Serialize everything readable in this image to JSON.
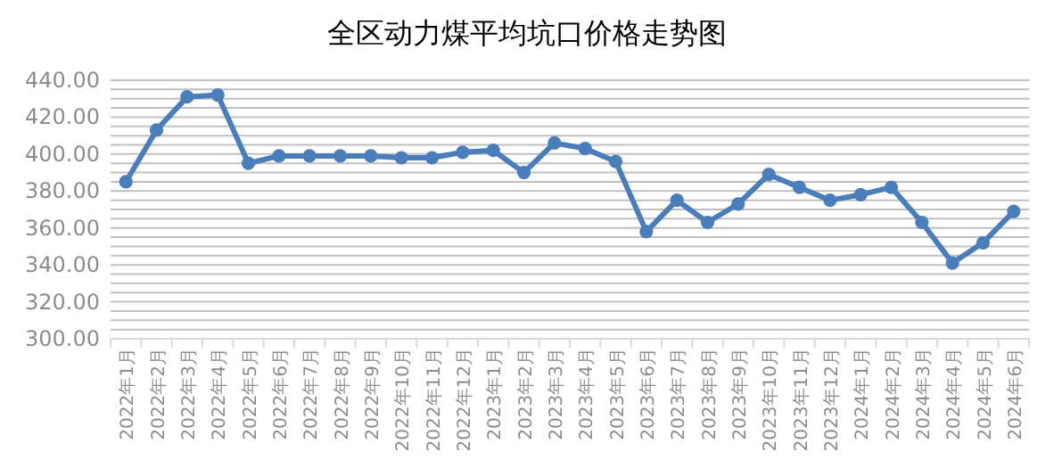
{
  "chart_data": {
    "type": "line",
    "title": "全区动力煤平均坑口价格走势图",
    "categories": [
      "2022年1月",
      "2022年2月",
      "2022年3月",
      "2022年4月",
      "2022年5月",
      "2022年6月",
      "2022年7月",
      "2022年8月",
      "2022年9月",
      "2022年10月",
      "2022年11月",
      "2022年12月",
      "2023年1月",
      "2023年2月",
      "2023年3月",
      "2023年4月",
      "2023年5月",
      "2023年6月",
      "2023年7月",
      "2023年8月",
      "2023年9月",
      "2023年10月",
      "2023年11月",
      "2023年12月",
      "2024年1月",
      "2024年2月",
      "2024年3月",
      "2024年4月",
      "2024年5月",
      "2024年6月"
    ],
    "series": [
      {
        "color": "#4a7ebb",
        "values": [
          385,
          413,
          431,
          432,
          395,
          399,
          399,
          399,
          399,
          398,
          398,
          401,
          402,
          390,
          406,
          403,
          396,
          358,
          375,
          363,
          373,
          389,
          382,
          375,
          378,
          382,
          363,
          341,
          352,
          369
        ]
      }
    ],
    "ylim": [
      300,
      440
    ],
    "yticks": [
      {
        "value": 300,
        "label": "300.00"
      },
      {
        "value": 305,
        "label": null
      },
      {
        "value": 310,
        "label": null
      },
      {
        "value": 315,
        "label": null
      },
      {
        "value": 320,
        "label": "320.00"
      },
      {
        "value": 325,
        "label": null
      },
      {
        "value": 330,
        "label": null
      },
      {
        "value": 335,
        "label": null
      },
      {
        "value": 340,
        "label": "340.00"
      },
      {
        "value": 345,
        "label": null
      },
      {
        "value": 350,
        "label": null
      },
      {
        "value": 355,
        "label": null
      },
      {
        "value": 360,
        "label": "360.00"
      },
      {
        "value": 365,
        "label": null
      },
      {
        "value": 370,
        "label": null
      },
      {
        "value": 375,
        "label": null
      },
      {
        "value": 380,
        "label": "380.00"
      },
      {
        "value": 385,
        "label": null
      },
      {
        "value": 390,
        "label": null
      },
      {
        "value": 395,
        "label": null
      },
      {
        "value": 400,
        "label": "400.00"
      },
      {
        "value": 405,
        "label": null
      },
      {
        "value": 410,
        "label": null
      },
      {
        "value": 415,
        "label": null
      },
      {
        "value": 420,
        "label": "420.00"
      },
      {
        "value": 425,
        "label": null
      },
      {
        "value": 430,
        "label": null
      },
      {
        "value": 435,
        "label": null
      },
      {
        "value": 440,
        "label": "440.00"
      }
    ],
    "grid": "y",
    "marker": "circle",
    "line_style": "solid"
  }
}
